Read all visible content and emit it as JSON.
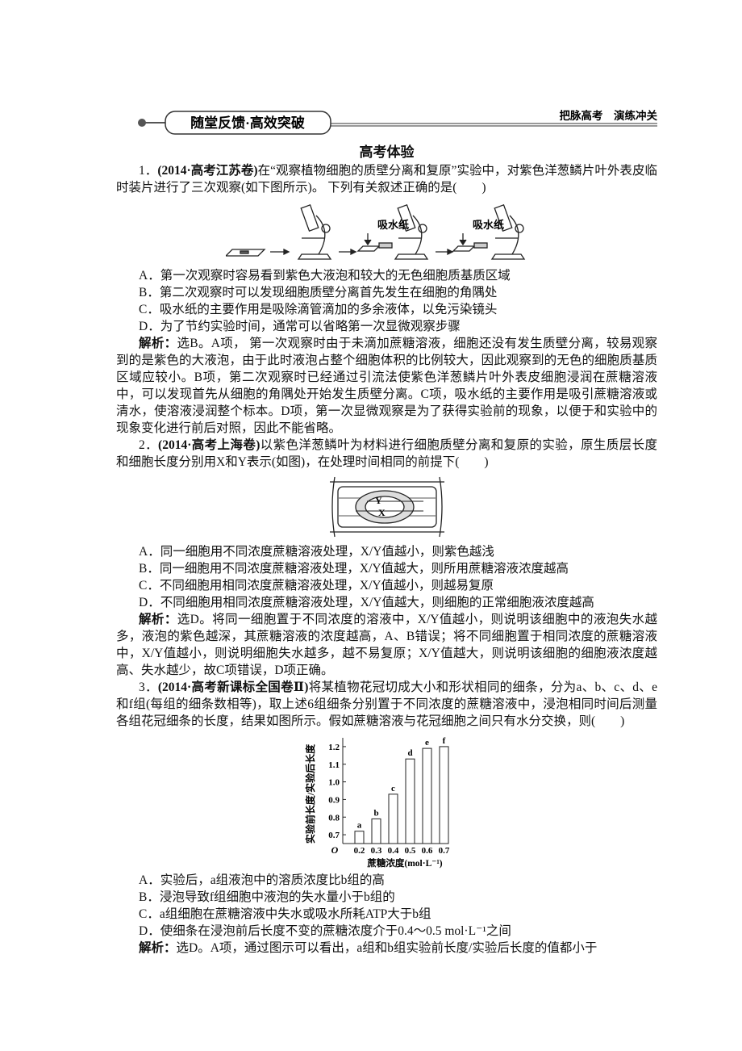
{
  "header": {
    "banner": "随堂反馈·高效突破",
    "right": "把脉高考　演练冲关"
  },
  "section_title": "高考体验",
  "questions": [
    {
      "number": "1．",
      "source": "(2014·高考江苏卷)",
      "stem": "在“观察植物细胞的质壁分离和复原”实验中，对紫色洋葱鳞片叶外表皮临时装片进行了三次观察(如下图所示)。 下列有关叙述正确的是(　　)",
      "figure_labels": [
        "吸水纸",
        "吸水纸"
      ],
      "options": [
        "A．第一次观察时容易看到紫色大液泡和较大的无色细胞质基质区域",
        "B．第二次观察时可以发现细胞质壁分离首先发生在细胞的角隅处",
        "C．吸水纸的主要作用是吸除滴管滴加的多余液体，以免污染镜头",
        "D．为了节约实验时间，通常可以省略第一次显微观察步骤"
      ],
      "analysis_label": "解析：",
      "analysis": "选B。A项， 第一次观察时由于未滴加蔗糖溶液，细胞还没有发生质壁分离，较易观察到的是紫色的大液泡，由于此时液泡占整个细胞体积的比例较大，因此观察到的无色的细胞质基质区域应较小。B项，第二次观察时已经通过引流法使紫色洋葱鳞片叶外表皮细胞浸润在蔗糖溶液中，可以发现首先从细胞的角隅处开始发生质壁分离。C项，吸水纸的主要作用是吸引蔗糖溶液或清水，使溶液浸润整个标本。D项，第一次显微观察是为了获得实验前的现象，以便于和实验中的现象变化进行前后对照，因此不能省略。"
    },
    {
      "number": "2．",
      "source": "(2014·高考上海卷)",
      "stem": "以紫色洋葱鳞叶为材料进行细胞质壁分离和复原的实验，原生质层长度和细胞长度分别用X和Y表示(如图)，在处理时间相同的前提下(　　)",
      "figure_labels": [
        "Y",
        "X"
      ],
      "options": [
        "A．同一细胞用不同浓度蔗糖溶液处理，X/Y值越小，则紫色越浅",
        "B．同一细胞用不同浓度蔗糖溶液处理，X/Y值越大，则所用蔗糖溶液浓度越高",
        "C．不同细胞用相同浓度蔗糖溶液处理，X/Y值越小，则越易复原",
        "D．不同细胞用相同浓度蔗糖溶液处理，X/Y值越大，则细胞的正常细胞液浓度越高"
      ],
      "analysis_label": "解析：",
      "analysis": "选D。将同一细胞置于不同浓度的溶液中，X/Y值越小，则说明该细胞中的液泡失水越多，液泡的紫色越深，其蔗糖溶液的浓度越高，A、B错误；将不同细胞置于相同浓度的蔗糖溶液中，X/Y值越小，则说明细胞失水越多，越不易复原；X/Y值越大，则说明该细胞的细胞液浓度越高、失水越少，故C项错误，D项正确。"
    },
    {
      "number": "3．",
      "source": "(2014·高考新课标全国卷Ⅱ)",
      "stem": "将某植物花冠切成大小和形状相同的细条，分为a、b、c、d、e和f组(每组的细条数相等)，取上述6组细条分别置于不同浓度的蔗糖溶液中，浸泡相同时间后测量各组花冠细条的长度，结果如图所示。假如蔗糖溶液与花冠细胞之间只有水分交换，则(　　)",
      "options": [
        "A．实验后，a组液泡中的溶质浓度比b组的高",
        "B．浸泡导致f组细胞中液泡的失水量小于b组的",
        "C．a组细胞在蔗糖溶液中失水或吸水所耗ATP大于b组",
        "D．使细条在浸泡前后长度不变的蔗糖浓度介于0.4～0.5 mol·L⁻¹之间"
      ],
      "analysis_label": "解析：",
      "analysis": "选D。A项，通过图示可以看出，a组和b组实验前长度/实验后长度的值都小于"
    }
  ],
  "chart_data": {
    "type": "bar",
    "y_label": "实验前长度/实验后长度",
    "x_label": "蔗糖浓度(mol·L⁻¹)",
    "origin_label": "O",
    "categories": [
      "0.2",
      "0.3",
      "0.4",
      "0.5",
      "0.6",
      "0.7"
    ],
    "bar_labels": [
      "a",
      "b",
      "c",
      "d",
      "e",
      "f"
    ],
    "values": [
      0.72,
      0.79,
      0.93,
      1.13,
      1.19,
      1.2
    ],
    "color": "#ffffff",
    "ylim": [
      0.65,
      1.25
    ],
    "yticks": [
      0.7,
      0.8,
      0.9,
      {
        "value": 1,
        "label": "1.0"
      },
      1.1,
      1.2
    ]
  }
}
